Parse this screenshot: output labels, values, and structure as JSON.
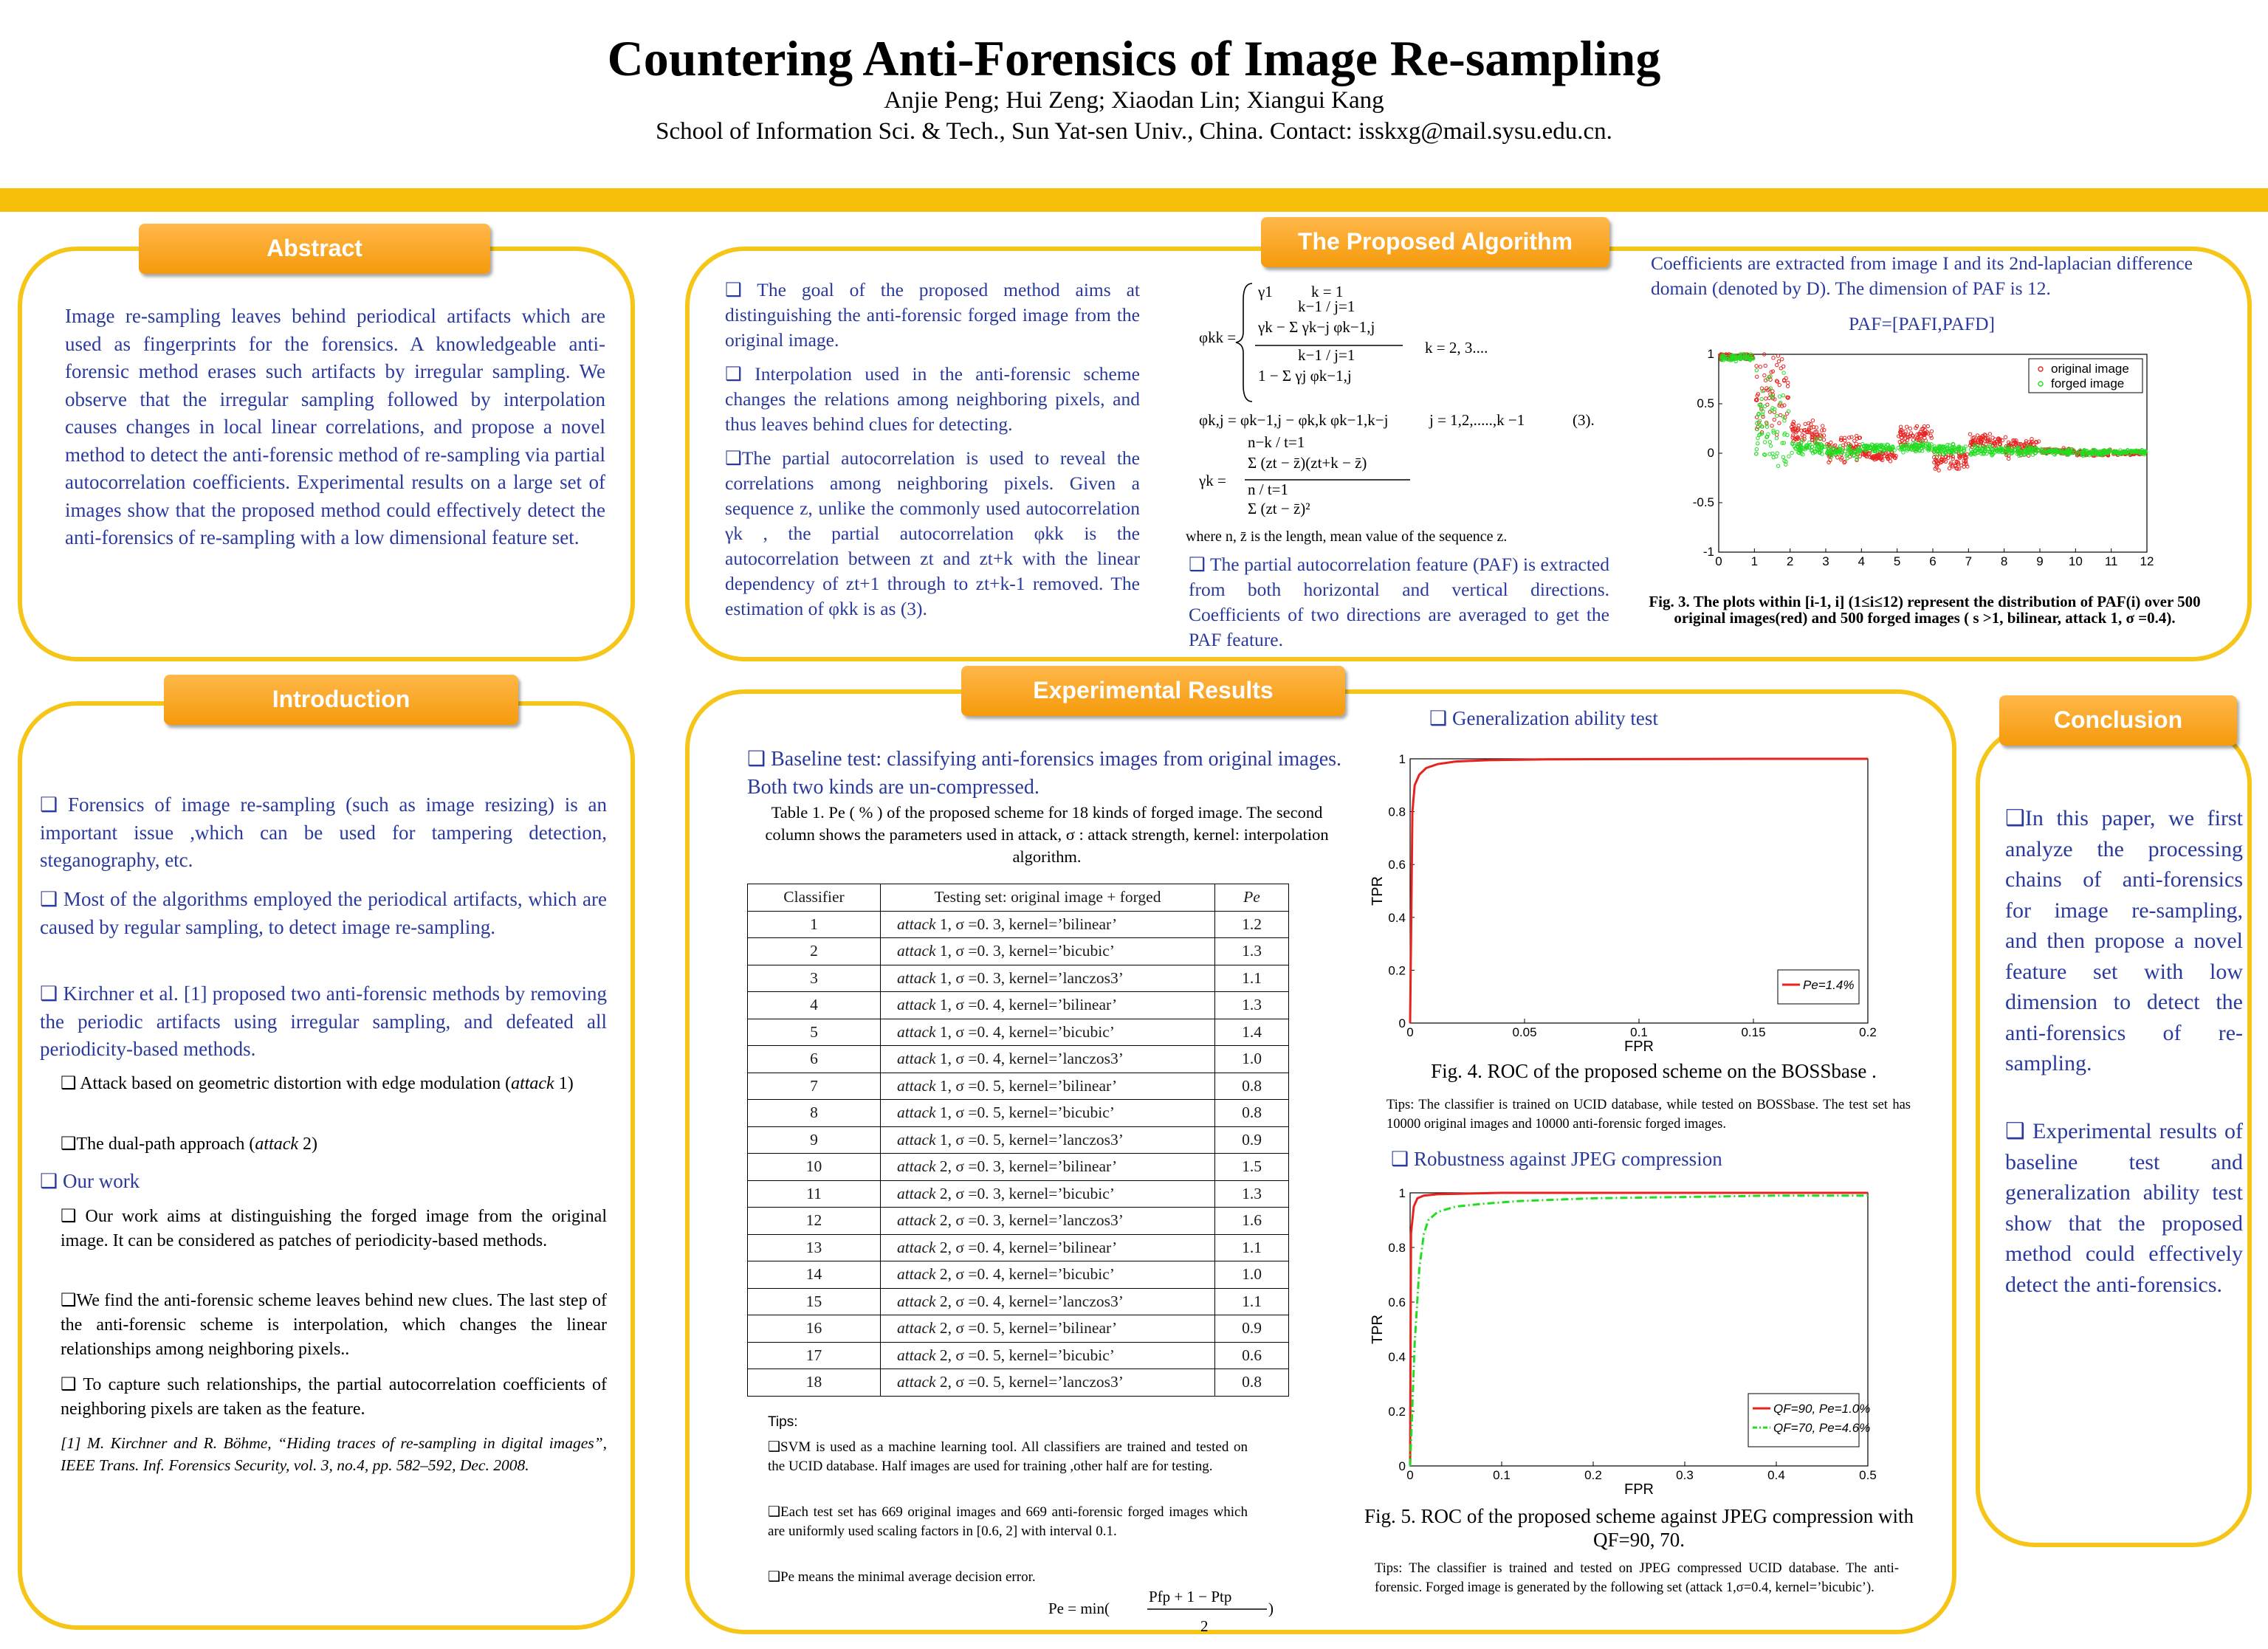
{
  "header": {
    "title": "Countering Anti-Forensics of Image Re-sampling",
    "authors": "Anjie Peng; Hui Zeng; Xiaodan Lin; Xiangui Kang",
    "affiliation": "School of Information Sci. & Tech., Sun Yat-sen Univ., China. Contact: isskxg@mail.sysu.edu.cn."
  },
  "colors": {
    "accent": "#f7bf0a",
    "header_orange": "#f59a0c",
    "body_blue": "#2a3a9c",
    "original_red": "#e8231f",
    "forged_green": "#22dd22"
  },
  "abstract": {
    "heading": "Abstract",
    "text": "Image re-sampling leaves behind periodical artifacts which are used as fingerprints for the forensics. A knowledgeable anti-forensic method erases such artifacts by irregular sampling. We observe that the irregular sampling followed by interpolation causes changes in local linear correlations, and propose a novel method to detect the anti-forensic method of re-sampling via partial autocorrelation coefficients. Experimental results on a large set of images show that the proposed method could effectively detect the anti-forensics of re-sampling with a low dimensional feature set."
  },
  "introduction": {
    "heading": "Introduction",
    "p1": "❑ Forensics of image re-sampling (such as image resizing) is an important issue ,which can be used for tampering detection, steganography, etc.",
    "p2": "❑ Most of the algorithms employed the periodical artifacts, which are caused by regular sampling, to detect image re-sampling.",
    "p3": "❑ Kirchner et al. [1] proposed two anti-forensic methods by removing the periodic artifacts using irregular sampling, and defeated all periodicity-based methods.",
    "attack1_pre": "❑ Attack based on geometric distortion with edge modulation (",
    "attack1_italic": "attack",
    "attack1_post": " 1)",
    "attack2_pre": "❑The dual-path approach (",
    "attack2_italic": "attack",
    "attack2_post": " 2)",
    "our_work": "❑ Our work",
    "w1": "❑ Our work aims at distinguishing the forged image from the original image. It can be considered as patches of periodicity-based methods.",
    "w2": "❑We find the anti-forensic scheme leaves behind new clues. The last step of the anti-forensic scheme is interpolation, which changes the linear relationships among neighboring pixels..",
    "w3": "❑ To capture such relationships, the partial autocorrelation coefficients of neighboring pixels are taken as the feature.",
    "ref": "[1] M. Kirchner and R. Böhme, “Hiding traces of re-sampling in digital images”, IEEE Trans. Inf. Forensics Security, vol. 3, no.4, pp. 582–592, Dec. 2008."
  },
  "algorithm": {
    "heading": "The Proposed Algorithm",
    "p1": "❑ The goal of the proposed method aims at distinguishing the anti-forensic forged image from the original image.",
    "p2": "❑ Interpolation used in the anti-forensic scheme changes the relations among neighboring pixels, and thus leaves behind clues for detecting.",
    "p3": "❑The partial autocorrelation is used to reveal the correlations among neighboring pixels. Given a sequence z, unlike the commonly used autocorrelation γk , the partial autocorrelation φkk is the autocorrelation between zt and zt+k with the linear dependency of zt+1 through to zt+k-1 removed. The estimation of φkk is as (3).",
    "eq_phi_kk": "φkk =",
    "eq_case1": "γ1",
    "eq_case1_cond": "k = 1",
    "eq_case2_num": "γk − Σ γk−j φk−1,j",
    "eq_case2_den": "1 − Σ γj φk−1,j",
    "eq_case2_cond": "k = 2, 3....",
    "eq_phi_kj": "φk,j = φk−1,j − φk,k φk−1,k−j",
    "eq_phi_kj_cond": "j = 1,2,.....,k −1",
    "eq_number": "(3).",
    "eq_gamma_lhs": "γk =",
    "eq_gamma_num": "Σ (zt − z̄)(zt+k − z̄)",
    "eq_gamma_den": "Σ (zt − z̄)²",
    "eq_gamma_num_lim": "n−k / t=1",
    "eq_gamma_den_lim": "n / t=1",
    "eq_sum_lim": "k−1 / j=1",
    "where": "where n, z̄  is the length, mean value of the sequence z.",
    "paf": "❑ The partial autocorrelation feature (PAF) is extracted from both horizontal and vertical directions. Coefficients of two directions are averaged to get the PAF feature.",
    "coef": "Coefficients are extracted from image I and its 2nd-laplacian difference domain (denoted by D). The dimension of PAF is 12.",
    "paf_eq": "PAF=[PAFI,PAFD]",
    "fig3_caption": "Fig. 3. The plots within [i-1, i] (1≤i≤12) represent the distribution of PAF(i) over 500 original images(red) and 500 forged images ( s >1, bilinear, attack 1, σ =0.4)."
  },
  "results": {
    "heading": "Experimental Results",
    "baseline": "❑ Baseline test: classifying anti-forensics images from original images. Both two kinds are un-compressed.",
    "table_caption": "Table 1. Pe ( % ) of the proposed scheme for 18 kinds of forged image. The second column shows the parameters used in attack, σ : attack strength, kernel: interpolation algorithm.",
    "table_headers": [
      "Classifier",
      "Testing set:  original image + forged",
      "Pe"
    ],
    "table_rows": [
      [
        "1",
        "attack 1,  σ =0. 3,  kernel=’bilinear’",
        "1.2"
      ],
      [
        "2",
        "attack 1,  σ =0. 3,  kernel=’bicubic’",
        "1.3"
      ],
      [
        "3",
        "attack 1,  σ =0. 3,  kernel=’lanczos3’",
        "1.1"
      ],
      [
        "4",
        "attack 1,  σ =0. 4,  kernel=’bilinear’",
        "1.3"
      ],
      [
        "5",
        "attack 1,  σ =0. 4,  kernel=’bicubic’",
        "1.4"
      ],
      [
        "6",
        "attack 1,  σ =0. 4,  kernel=’lanczos3’",
        "1.0"
      ],
      [
        "7",
        "attack 1,  σ =0. 5,  kernel=’bilinear’",
        "0.8"
      ],
      [
        "8",
        "attack 1,  σ =0. 5,  kernel=’bicubic’",
        "0.8"
      ],
      [
        "9",
        "attack 1,  σ =0. 5,  kernel=’lanczos3’",
        "0.9"
      ],
      [
        "10",
        "attack 2,  σ =0. 3,  kernel=’bilinear’",
        "1.5"
      ],
      [
        "11",
        "attack 2,  σ =0. 3,  kernel=’bicubic’",
        "1.3"
      ],
      [
        "12",
        "attack 2,  σ =0. 3,  kernel=’lanczos3’",
        "1.6"
      ],
      [
        "13",
        "attack 2,  σ =0. 4,  kernel=’bilinear’",
        "1.1"
      ],
      [
        "14",
        "attack 2,  σ =0. 4,  kernel=’bicubic’",
        "1.0"
      ],
      [
        "15",
        "attack 2,  σ =0. 4,  kernel=’lanczos3’",
        "1.1"
      ],
      [
        "16",
        "attack 2,  σ =0. 5,  kernel=’bilinear’",
        "0.9"
      ],
      [
        "17",
        "attack 2,  σ =0. 5,  kernel=’bicubic’",
        "0.6"
      ],
      [
        "18",
        "attack 2,  σ =0. 5,  kernel=’lanczos3’",
        "0.8"
      ]
    ],
    "tips_label": "Tips:",
    "tip1": "❑SVM is used as a machine learning tool.  All classifiers are trained and tested on the UCID database. Half images are used for training ,other half are for testing.",
    "tip2": "❑Each test  set has 669 original images and 669 anti-forensic  forged images which are  uniformly used scaling factors in [0.6, 2] with interval 0.1.",
    "tip3": "❑Pe means the minimal average decision error.",
    "pe_formula_lhs": "Pe = min(",
    "pe_formula_num": "Pfp + 1 − Ptp",
    "pe_formula_den": "2",
    "pe_formula_rhs": ")",
    "gen_heading": "❑ Generalization  ability test",
    "fig4_caption": "Fig. 4.  ROC of the proposed scheme on the BOSSbase .",
    "fig4_tips": "Tips:   The classifier is trained on UCID database, while tested on BOSSbase. The test set has 10000 original images and 10000 anti-forensic forged images.",
    "rob_heading": "❑ Robustness against JPEG compression",
    "fig5_caption": "Fig. 5.  ROC of the proposed scheme against JPEG compression with QF=90, 70.",
    "fig5_tips": "Tips:   The classifier is trained  and tested on  JPEG compressed UCID database. The anti-forensic.  Forged image is generated by the   following set (attack 1,σ=0.4, kernel=’bicubic’)."
  },
  "conclusion": {
    "heading": "Conclusion",
    "p1": "❑In this paper, we first analyze the processing chains of anti-forensics for image re-sampling, and then propose a novel feature set with low dimension to detect the anti-forensics of re-sampling.",
    "p2": "❑ Experimental results of baseline test and generalization ability test show that the proposed method could effectively detect the anti-forensics."
  },
  "chart_data": [
    {
      "type": "scatter",
      "figure": "Fig. 3",
      "title": "",
      "xlabel": "",
      "ylabel": "",
      "xlim": [
        0,
        12
      ],
      "ylim": [
        -1,
        1
      ],
      "x_ticks": [
        "0",
        "1",
        "2",
        "3",
        "4",
        "5",
        "6",
        "7",
        "8",
        "9",
        "10",
        "11",
        "12"
      ],
      "y_ticks": [
        "-1",
        "-0.5",
        "0",
        "0.5",
        "1"
      ],
      "legend_position": "top-right",
      "series": [
        {
          "name": "original image",
          "color": "#e8231f",
          "centers": [
            0.98,
            0.62,
            0.2,
            0.05,
            -0.02,
            0.18,
            -0.08,
            0.12,
            0.07,
            0.02,
            0.0,
            0.0
          ],
          "spreads": [
            0.03,
            0.35,
            0.1,
            0.12,
            0.05,
            0.1,
            0.1,
            0.08,
            0.09,
            0.03,
            0.03,
            0.02
          ]
        },
        {
          "name": "forged image",
          "color": "#22dd22",
          "centers": [
            0.97,
            0.25,
            0.06,
            0.02,
            0.05,
            0.06,
            0.04,
            0.03,
            0.02,
            0.02,
            0.01,
            0.01
          ],
          "spreads": [
            0.03,
            0.45,
            0.07,
            0.06,
            0.04,
            0.05,
            0.05,
            0.05,
            0.04,
            0.03,
            0.03,
            0.02
          ]
        }
      ]
    },
    {
      "type": "line",
      "figure": "Fig. 4",
      "title": "",
      "xlabel": "FPR",
      "ylabel": "TPR",
      "xlim": [
        0,
        0.2
      ],
      "ylim": [
        0,
        1
      ],
      "x_ticks": [
        "0",
        "0.05",
        "0.1",
        "0.15",
        "0.2"
      ],
      "y_ticks": [
        "0",
        "0.2",
        "0.4",
        "0.6",
        "0.8",
        "1"
      ],
      "legend_position": "bottom-right",
      "series": [
        {
          "name": "Pe=1.4%",
          "color": "#e8231f",
          "x": [
            0,
            0.001,
            0.002,
            0.004,
            0.007,
            0.012,
            0.02,
            0.035,
            0.06,
            0.1,
            0.15,
            0.2
          ],
          "y": [
            0,
            0.8,
            0.9,
            0.94,
            0.965,
            0.98,
            0.99,
            0.995,
            0.998,
            0.999,
            1.0,
            1.0
          ]
        }
      ]
    },
    {
      "type": "line",
      "figure": "Fig. 5",
      "title": "",
      "xlabel": "FPR",
      "ylabel": "TPR",
      "xlim": [
        0,
        0.5
      ],
      "ylim": [
        0,
        1
      ],
      "x_ticks": [
        "0",
        "0.1",
        "0.2",
        "0.3",
        "0.4",
        "0.5"
      ],
      "y_ticks": [
        "0",
        "0.2",
        "0.4",
        "0.6",
        "0.8",
        "1"
      ],
      "legend_position": "bottom-right",
      "series": [
        {
          "name": "QF=90, Pe=1.0%",
          "color": "#e8231f",
          "dash": "solid",
          "x": [
            0,
            0.001,
            0.004,
            0.008,
            0.015,
            0.03,
            0.1,
            0.5
          ],
          "y": [
            0,
            0.85,
            0.95,
            0.98,
            0.99,
            0.995,
            1.0,
            1.0
          ]
        },
        {
          "name": "QF=70, Pe=4.6%",
          "color": "#22dd22",
          "dash": "dashdot",
          "x": [
            0,
            0.005,
            0.01,
            0.015,
            0.02,
            0.03,
            0.05,
            0.08,
            0.12,
            0.2,
            0.3,
            0.4,
            0.5
          ],
          "y": [
            0,
            0.45,
            0.72,
            0.85,
            0.9,
            0.93,
            0.95,
            0.96,
            0.97,
            0.98,
            0.985,
            0.99,
            0.99
          ]
        }
      ]
    }
  ]
}
